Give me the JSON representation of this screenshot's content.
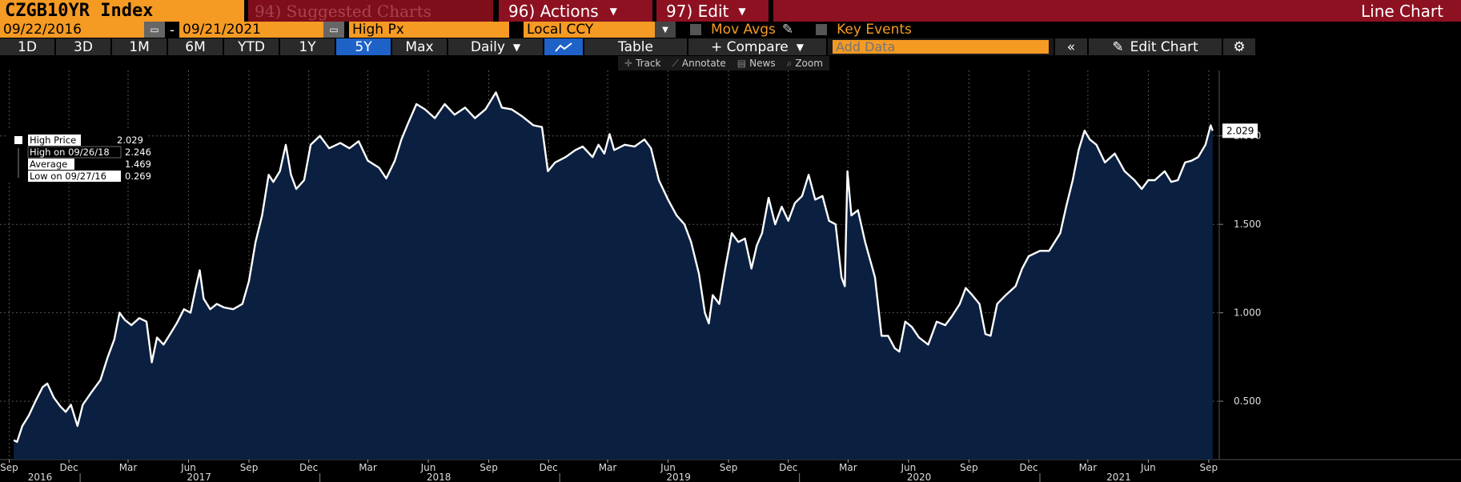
{
  "toolbar": {
    "ticker": "CZGB10YR Index",
    "suggested": "94) Suggested Charts",
    "actions": "96) Actions",
    "edit": "97) Edit",
    "chart_type": "Line Chart",
    "start_date": "09/22/2016",
    "end_date": "09/21/2021",
    "date_sep": "-",
    "field": "High Px",
    "currency": "Local CCY",
    "mov_avgs": "Mov Avgs",
    "key_events": "Key Events",
    "periods": [
      "1D",
      "3D",
      "1M",
      "6M",
      "YTD",
      "1Y",
      "5Y",
      "Max"
    ],
    "active_period": "5Y",
    "frequency": "Daily",
    "table": "Table",
    "compare": "+ Compare",
    "add_data_placeholder": "Add Data",
    "collapse": "«",
    "edit_chart": "Edit Chart",
    "sub_tools": [
      "Track",
      "Annotate",
      "News",
      "Zoom"
    ]
  },
  "legend": {
    "series_name": "High Price",
    "series_value": "2.029",
    "high_label": "High on 09/26/18",
    "high_value": "2.246",
    "avg_label": "Average",
    "avg_value": "1.469",
    "low_label": "Low on 09/27/16",
    "low_value": "0.269"
  },
  "chart_data": {
    "type": "area",
    "title": "",
    "xlabel": "",
    "ylabel": "",
    "ylim": [
      0.17,
      2.37
    ],
    "y_ticks": [
      0.5,
      1.0,
      1.5,
      2.0
    ],
    "y_tick_labels": [
      "0.500",
      "1.000",
      "1.500",
      "2.000"
    ],
    "last_value_label": "2.029",
    "x_ticks": [
      {
        "date": "2016-09-15",
        "label": "Sep"
      },
      {
        "date": "2016-12-15",
        "label": "Dec"
      },
      {
        "date": "2017-03-15",
        "label": "Mar"
      },
      {
        "date": "2017-06-15",
        "label": "Jun"
      },
      {
        "date": "2017-09-15",
        "label": "Sep"
      },
      {
        "date": "2017-12-15",
        "label": "Dec"
      },
      {
        "date": "2018-03-15",
        "label": "Mar"
      },
      {
        "date": "2018-06-15",
        "label": "Jun"
      },
      {
        "date": "2018-09-15",
        "label": "Sep"
      },
      {
        "date": "2018-12-15",
        "label": "Dec"
      },
      {
        "date": "2019-03-15",
        "label": "Mar"
      },
      {
        "date": "2019-06-15",
        "label": "Jun"
      },
      {
        "date": "2019-09-15",
        "label": "Sep"
      },
      {
        "date": "2019-12-15",
        "label": "Dec"
      },
      {
        "date": "2020-03-15",
        "label": "Mar"
      },
      {
        "date": "2020-06-15",
        "label": "Jun"
      },
      {
        "date": "2020-09-15",
        "label": "Sep"
      },
      {
        "date": "2020-12-15",
        "label": "Dec"
      },
      {
        "date": "2021-03-15",
        "label": "Mar"
      },
      {
        "date": "2021-06-15",
        "label": "Jun"
      },
      {
        "date": "2021-09-15",
        "label": "Sep"
      }
    ],
    "years": [
      {
        "label": "2016",
        "date": "2016-11-01"
      },
      {
        "label": "2017",
        "date": "2017-07-01"
      },
      {
        "label": "2018",
        "date": "2018-07-01"
      },
      {
        "label": "2019",
        "date": "2019-07-01"
      },
      {
        "label": "2020",
        "date": "2020-07-01"
      },
      {
        "label": "2021",
        "date": "2021-05-01"
      }
    ],
    "year_dividers": [
      "2017-01-01",
      "2018-01-01",
      "2019-01-01",
      "2020-01-01",
      "2021-01-01"
    ],
    "grid": true,
    "x_start": "2016-09-01",
    "x_end": "2021-10-01",
    "series": [
      {
        "name": "High Price",
        "color": "#ffffff",
        "fill": "#0a1f3a",
        "points": [
          [
            "2016-09-22",
            0.28
          ],
          [
            "2016-09-27",
            0.27
          ],
          [
            "2016-10-05",
            0.36
          ],
          [
            "2016-10-15",
            0.42
          ],
          [
            "2016-10-25",
            0.5
          ],
          [
            "2016-11-05",
            0.58
          ],
          [
            "2016-11-12",
            0.6
          ],
          [
            "2016-11-22",
            0.52
          ],
          [
            "2016-12-02",
            0.47
          ],
          [
            "2016-12-10",
            0.44
          ],
          [
            "2016-12-18",
            0.48
          ],
          [
            "2016-12-28",
            0.36
          ],
          [
            "2017-01-05",
            0.48
          ],
          [
            "2017-01-18",
            0.55
          ],
          [
            "2017-02-01",
            0.62
          ],
          [
            "2017-02-12",
            0.75
          ],
          [
            "2017-02-22",
            0.85
          ],
          [
            "2017-03-02",
            1.0
          ],
          [
            "2017-03-10",
            0.96
          ],
          [
            "2017-03-20",
            0.93
          ],
          [
            "2017-04-01",
            0.97
          ],
          [
            "2017-04-12",
            0.95
          ],
          [
            "2017-04-20",
            0.72
          ],
          [
            "2017-04-28",
            0.86
          ],
          [
            "2017-05-08",
            0.82
          ],
          [
            "2017-05-18",
            0.88
          ],
          [
            "2017-05-28",
            0.94
          ],
          [
            "2017-06-08",
            1.02
          ],
          [
            "2017-06-18",
            1.0
          ],
          [
            "2017-06-26",
            1.14
          ],
          [
            "2017-07-02",
            1.24
          ],
          [
            "2017-07-08",
            1.08
          ],
          [
            "2017-07-18",
            1.02
          ],
          [
            "2017-07-28",
            1.05
          ],
          [
            "2017-08-08",
            1.03
          ],
          [
            "2017-08-22",
            1.02
          ],
          [
            "2017-09-05",
            1.05
          ],
          [
            "2017-09-15",
            1.18
          ],
          [
            "2017-09-25",
            1.4
          ],
          [
            "2017-10-05",
            1.55
          ],
          [
            "2017-10-15",
            1.78
          ],
          [
            "2017-10-22",
            1.74
          ],
          [
            "2017-11-01",
            1.8
          ],
          [
            "2017-11-10",
            1.95
          ],
          [
            "2017-11-18",
            1.78
          ],
          [
            "2017-11-26",
            1.7
          ],
          [
            "2017-12-08",
            1.75
          ],
          [
            "2017-12-18",
            1.95
          ],
          [
            "2018-01-01",
            2.0
          ],
          [
            "2018-01-15",
            1.93
          ],
          [
            "2018-02-01",
            1.96
          ],
          [
            "2018-02-15",
            1.93
          ],
          [
            "2018-03-01",
            1.97
          ],
          [
            "2018-03-15",
            1.86
          ],
          [
            "2018-04-01",
            1.82
          ],
          [
            "2018-04-12",
            1.76
          ],
          [
            "2018-04-25",
            1.86
          ],
          [
            "2018-05-05",
            1.98
          ],
          [
            "2018-05-15",
            2.07
          ],
          [
            "2018-05-28",
            2.18
          ],
          [
            "2018-06-10",
            2.15
          ],
          [
            "2018-06-25",
            2.1
          ],
          [
            "2018-07-10",
            2.18
          ],
          [
            "2018-07-25",
            2.12
          ],
          [
            "2018-08-10",
            2.16
          ],
          [
            "2018-08-25",
            2.1
          ],
          [
            "2018-09-10",
            2.15
          ],
          [
            "2018-09-26",
            2.246
          ],
          [
            "2018-10-05",
            2.16
          ],
          [
            "2018-10-20",
            2.15
          ],
          [
            "2018-11-05",
            2.11
          ],
          [
            "2018-11-22",
            2.06
          ],
          [
            "2018-12-05",
            2.05
          ],
          [
            "2018-12-14",
            1.8
          ],
          [
            "2018-12-25",
            1.85
          ],
          [
            "2019-01-10",
            1.88
          ],
          [
            "2019-01-25",
            1.92
          ],
          [
            "2019-02-05",
            1.94
          ],
          [
            "2019-02-20",
            1.88
          ],
          [
            "2019-03-01",
            1.95
          ],
          [
            "2019-03-10",
            1.9
          ],
          [
            "2019-03-18",
            2.01
          ],
          [
            "2019-03-25",
            1.92
          ],
          [
            "2019-04-10",
            1.95
          ],
          [
            "2019-04-25",
            1.94
          ],
          [
            "2019-05-10",
            1.98
          ],
          [
            "2019-05-20",
            1.93
          ],
          [
            "2019-06-01",
            1.75
          ],
          [
            "2019-06-15",
            1.64
          ],
          [
            "2019-06-28",
            1.55
          ],
          [
            "2019-07-10",
            1.5
          ],
          [
            "2019-07-20",
            1.4
          ],
          [
            "2019-08-01",
            1.22
          ],
          [
            "2019-08-10",
            1.0
          ],
          [
            "2019-08-16",
            0.94
          ],
          [
            "2019-08-22",
            1.1
          ],
          [
            "2019-09-01",
            1.05
          ],
          [
            "2019-09-10",
            1.25
          ],
          [
            "2019-09-20",
            1.45
          ],
          [
            "2019-09-30",
            1.4
          ],
          [
            "2019-10-10",
            1.42
          ],
          [
            "2019-10-20",
            1.25
          ],
          [
            "2019-10-28",
            1.38
          ],
          [
            "2019-11-05",
            1.45
          ],
          [
            "2019-11-15",
            1.65
          ],
          [
            "2019-11-25",
            1.5
          ],
          [
            "2019-12-05",
            1.6
          ],
          [
            "2019-12-15",
            1.52
          ],
          [
            "2019-12-25",
            1.62
          ],
          [
            "2020-01-05",
            1.66
          ],
          [
            "2020-01-15",
            1.78
          ],
          [
            "2020-01-25",
            1.64
          ],
          [
            "2020-02-05",
            1.66
          ],
          [
            "2020-02-15",
            1.52
          ],
          [
            "2020-02-25",
            1.5
          ],
          [
            "2020-03-05",
            1.2
          ],
          [
            "2020-03-10",
            1.15
          ],
          [
            "2020-03-14",
            1.8
          ],
          [
            "2020-03-20",
            1.55
          ],
          [
            "2020-03-30",
            1.58
          ],
          [
            "2020-04-10",
            1.4
          ],
          [
            "2020-04-25",
            1.2
          ],
          [
            "2020-05-05",
            0.87
          ],
          [
            "2020-05-15",
            0.87
          ],
          [
            "2020-05-25",
            0.8
          ],
          [
            "2020-06-01",
            0.78
          ],
          [
            "2020-06-10",
            0.95
          ],
          [
            "2020-06-20",
            0.92
          ],
          [
            "2020-07-01",
            0.86
          ],
          [
            "2020-07-15",
            0.82
          ],
          [
            "2020-07-28",
            0.95
          ],
          [
            "2020-08-10",
            0.93
          ],
          [
            "2020-08-20",
            0.98
          ],
          [
            "2020-09-01",
            1.05
          ],
          [
            "2020-09-10",
            1.14
          ],
          [
            "2020-09-20",
            1.1
          ],
          [
            "2020-10-01",
            1.05
          ],
          [
            "2020-10-10",
            0.88
          ],
          [
            "2020-10-18",
            0.87
          ],
          [
            "2020-10-28",
            1.05
          ],
          [
            "2020-11-10",
            1.1
          ],
          [
            "2020-11-25",
            1.15
          ],
          [
            "2020-12-05",
            1.25
          ],
          [
            "2020-12-15",
            1.32
          ],
          [
            "2021-01-01",
            1.35
          ],
          [
            "2021-01-15",
            1.35
          ],
          [
            "2021-02-01",
            1.45
          ],
          [
            "2021-02-10",
            1.6
          ],
          [
            "2021-02-20",
            1.75
          ],
          [
            "2021-03-01",
            1.92
          ],
          [
            "2021-03-10",
            2.03
          ],
          [
            "2021-03-18",
            1.98
          ],
          [
            "2021-03-28",
            1.95
          ],
          [
            "2021-04-10",
            1.85
          ],
          [
            "2021-04-25",
            1.9
          ],
          [
            "2021-05-10",
            1.8
          ],
          [
            "2021-05-25",
            1.75
          ],
          [
            "2021-06-05",
            1.7
          ],
          [
            "2021-06-15",
            1.75
          ],
          [
            "2021-06-25",
            1.75
          ],
          [
            "2021-07-10",
            1.8
          ],
          [
            "2021-07-20",
            1.74
          ],
          [
            "2021-07-30",
            1.75
          ],
          [
            "2021-08-10",
            1.85
          ],
          [
            "2021-08-20",
            1.86
          ],
          [
            "2021-08-30",
            1.88
          ],
          [
            "2021-09-10",
            1.95
          ],
          [
            "2021-09-18",
            2.06
          ],
          [
            "2021-09-21",
            2.029
          ]
        ]
      }
    ]
  }
}
